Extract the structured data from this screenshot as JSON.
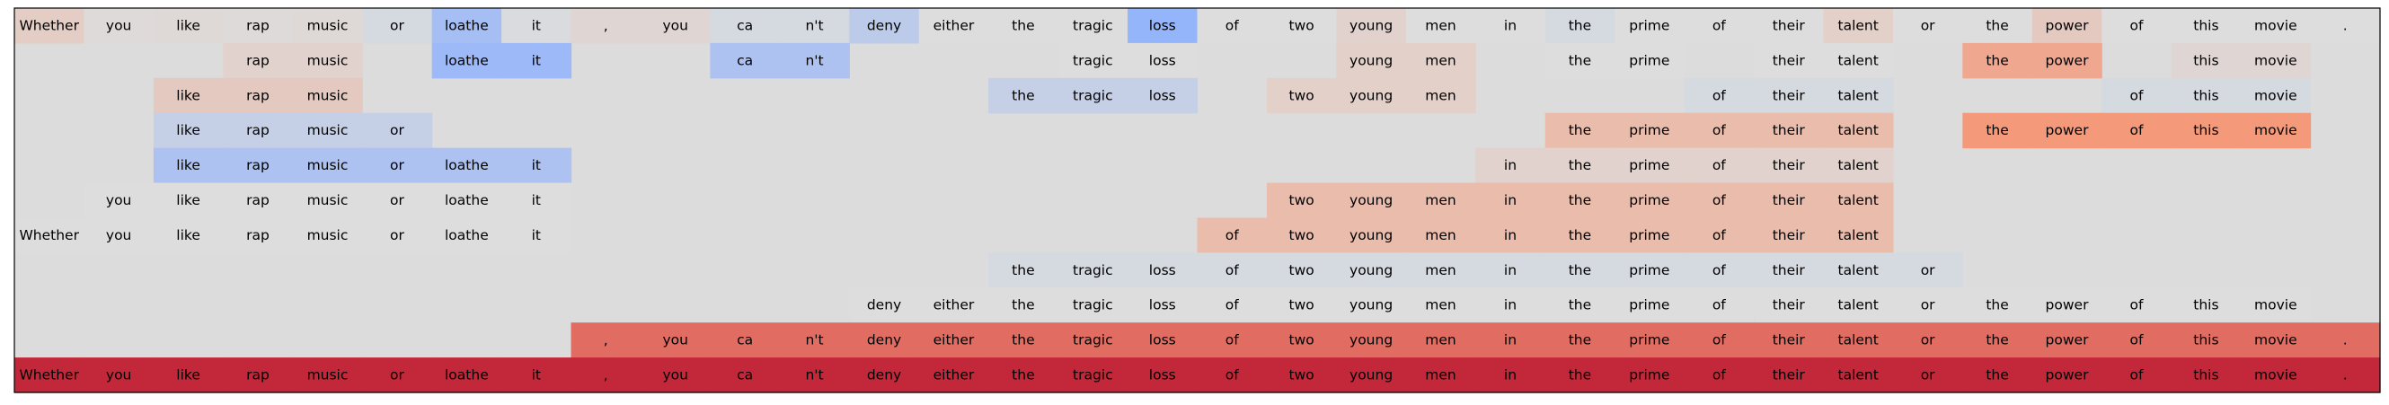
{
  "chart_data": {
    "type": "heatmap",
    "title": "",
    "xlabel": "",
    "ylabel": "",
    "colormap": "coolwarm",
    "value_range": [
      -1,
      1
    ],
    "background_color": "#dcdcdc",
    "grid": false,
    "tokens": [
      "Whether",
      "you",
      "like",
      "rap",
      "music",
      "or",
      "loathe",
      "it",
      ",",
      "you",
      "ca",
      "n't",
      "deny",
      "either",
      "the",
      "tragic",
      "loss",
      "of",
      "two",
      "young",
      "men",
      "in",
      "the",
      "prime",
      "of",
      "their",
      "talent",
      "or",
      "the",
      "power",
      "of",
      "this",
      "movie",
      "."
    ],
    "rows": [
      {
        "visible": [
          1,
          1,
          1,
          1,
          1,
          1,
          1,
          1,
          1,
          1,
          1,
          1,
          1,
          1,
          1,
          1,
          1,
          1,
          1,
          1,
          1,
          1,
          1,
          1,
          1,
          1,
          1,
          1,
          1,
          1,
          1,
          1,
          1,
          1
        ],
        "values": [
          0.12,
          0.02,
          0.03,
          0.02,
          0.03,
          -0.05,
          -0.35,
          -0.02,
          0.05,
          0.05,
          -0.05,
          -0.05,
          -0.2,
          0.0,
          0.0,
          0.0,
          -0.45,
          0.0,
          0.0,
          0.08,
          0.0,
          0.0,
          -0.05,
          0.0,
          0.0,
          0.0,
          0.1,
          0.0,
          0.0,
          0.15,
          0.0,
          0.0,
          0.0,
          0.0
        ]
      },
      {
        "visible": [
          0,
          0,
          0,
          1,
          1,
          0,
          1,
          1,
          0,
          0,
          1,
          1,
          0,
          0,
          0,
          1,
          1,
          0,
          0,
          1,
          1,
          0,
          1,
          1,
          0,
          1,
          1,
          0,
          1,
          1,
          0,
          1,
          1,
          0
        ],
        "values": [
          0,
          0,
          0,
          0.08,
          0.08,
          0,
          -0.4,
          -0.4,
          0,
          0,
          -0.3,
          -0.3,
          0,
          0,
          0,
          0.0,
          0.0,
          0,
          0,
          0.1,
          0.1,
          0,
          0.0,
          0.0,
          0,
          0.0,
          0.0,
          0,
          0.4,
          0.4,
          0,
          0.05,
          0.05,
          0
        ]
      },
      {
        "visible": [
          0,
          0,
          1,
          1,
          1,
          0,
          0,
          0,
          0,
          0,
          0,
          0,
          0,
          0,
          1,
          1,
          1,
          0,
          1,
          1,
          1,
          0,
          0,
          0,
          1,
          1,
          1,
          0,
          0,
          0,
          1,
          1,
          1,
          0
        ],
        "values": [
          0,
          0,
          0.15,
          0.15,
          0.15,
          0,
          0,
          0,
          0,
          0,
          0,
          0,
          0,
          0,
          -0.15,
          -0.15,
          -0.15,
          0,
          0.1,
          0.1,
          0.1,
          0,
          0,
          0,
          -0.05,
          -0.05,
          -0.05,
          0,
          0,
          0,
          -0.05,
          -0.05,
          -0.05,
          0
        ]
      },
      {
        "visible": [
          0,
          0,
          1,
          1,
          1,
          1,
          0,
          0,
          0,
          0,
          0,
          0,
          0,
          0,
          0,
          0,
          0,
          0,
          0,
          0,
          0,
          0,
          1,
          1,
          1,
          1,
          1,
          0,
          1,
          1,
          1,
          1,
          1,
          0
        ],
        "values": [
          0,
          0,
          -0.15,
          -0.15,
          -0.15,
          -0.15,
          0,
          0,
          0,
          0,
          0,
          0,
          0,
          0,
          0,
          0,
          0,
          0,
          0,
          0,
          0,
          0,
          0.25,
          0.25,
          0.25,
          0.25,
          0.25,
          0,
          0.5,
          0.5,
          0.5,
          0.5,
          0.5,
          0
        ]
      },
      {
        "visible": [
          0,
          0,
          1,
          1,
          1,
          1,
          1,
          1,
          0,
          0,
          0,
          0,
          0,
          0,
          0,
          0,
          0,
          0,
          0,
          0,
          0,
          1,
          1,
          1,
          1,
          1,
          1,
          0,
          0,
          0,
          0,
          0,
          0,
          0
        ],
        "values": [
          0,
          0,
          -0.3,
          -0.3,
          -0.3,
          -0.3,
          -0.3,
          -0.3,
          0,
          0,
          0,
          0,
          0,
          0,
          0,
          0,
          0,
          0,
          0,
          0,
          0,
          0.08,
          0.08,
          0.08,
          0.08,
          0.08,
          0.08,
          0,
          0,
          0,
          0,
          0,
          0,
          0
        ]
      },
      {
        "visible": [
          0,
          1,
          1,
          1,
          1,
          1,
          1,
          1,
          0,
          0,
          0,
          0,
          0,
          0,
          0,
          0,
          0,
          0,
          1,
          1,
          1,
          1,
          1,
          1,
          1,
          1,
          1,
          0,
          0,
          0,
          0,
          0,
          0,
          0
        ],
        "values": [
          0,
          0.0,
          0.0,
          0.0,
          0.0,
          0.0,
          0.0,
          0.0,
          0,
          0,
          0,
          0,
          0,
          0,
          0,
          0,
          0,
          0,
          0.25,
          0.25,
          0.25,
          0.25,
          0.25,
          0.25,
          0.25,
          0.25,
          0.25,
          0,
          0,
          0,
          0,
          0,
          0,
          0
        ]
      },
      {
        "visible": [
          1,
          1,
          1,
          1,
          1,
          1,
          1,
          1,
          0,
          0,
          0,
          0,
          0,
          0,
          0,
          0,
          0,
          1,
          1,
          1,
          1,
          1,
          1,
          1,
          1,
          1,
          1,
          0,
          0,
          0,
          0,
          0,
          0,
          0
        ],
        "values": [
          0.0,
          0.0,
          0.0,
          0.0,
          0.0,
          0.0,
          0.0,
          0.0,
          0,
          0,
          0,
          0,
          0,
          0,
          0,
          0,
          0,
          0.25,
          0.25,
          0.25,
          0.25,
          0.25,
          0.25,
          0.25,
          0.25,
          0.25,
          0.25,
          0,
          0,
          0,
          0,
          0,
          0,
          0
        ]
      },
      {
        "visible": [
          0,
          0,
          0,
          0,
          0,
          0,
          0,
          0,
          0,
          0,
          0,
          0,
          0,
          0,
          1,
          1,
          1,
          1,
          1,
          1,
          1,
          1,
          1,
          1,
          1,
          1,
          1,
          1,
          0,
          0,
          0,
          0,
          0,
          0
        ],
        "values": [
          0,
          0,
          0,
          0,
          0,
          0,
          0,
          0,
          0,
          0,
          0,
          0,
          0,
          0,
          -0.05,
          -0.05,
          -0.05,
          -0.05,
          -0.05,
          -0.05,
          -0.05,
          -0.05,
          -0.05,
          -0.05,
          -0.05,
          -0.05,
          -0.05,
          -0.05,
          0,
          0,
          0,
          0,
          0,
          0
        ]
      },
      {
        "visible": [
          0,
          0,
          0,
          0,
          0,
          0,
          0,
          0,
          0,
          0,
          0,
          0,
          1,
          1,
          1,
          1,
          1,
          1,
          1,
          1,
          1,
          1,
          1,
          1,
          1,
          1,
          1,
          1,
          1,
          1,
          1,
          1,
          1,
          0
        ],
        "values": [
          0,
          0,
          0,
          0,
          0,
          0,
          0,
          0,
          0,
          0,
          0,
          0,
          0.0,
          0.0,
          0.0,
          0.0,
          0.0,
          0.0,
          0.0,
          0.0,
          0.0,
          0.0,
          0.0,
          0.0,
          0.0,
          0.0,
          0.0,
          0.0,
          0.0,
          0.0,
          0.0,
          0.0,
          0.0,
          0
        ]
      },
      {
        "visible": [
          0,
          0,
          0,
          0,
          0,
          0,
          0,
          0,
          1,
          1,
          1,
          1,
          1,
          1,
          1,
          1,
          1,
          1,
          1,
          1,
          1,
          1,
          1,
          1,
          1,
          1,
          1,
          1,
          1,
          1,
          1,
          1,
          1,
          1
        ],
        "values": [
          0,
          0,
          0,
          0,
          0,
          0,
          0,
          0,
          0.65,
          0.65,
          0.65,
          0.65,
          0.65,
          0.65,
          0.65,
          0.65,
          0.65,
          0.65,
          0.65,
          0.65,
          0.65,
          0.65,
          0.65,
          0.65,
          0.65,
          0.65,
          0.65,
          0.65,
          0.65,
          0.65,
          0.65,
          0.65,
          0.65,
          0.65
        ]
      },
      {
        "visible": [
          1,
          1,
          1,
          1,
          1,
          1,
          1,
          1,
          1,
          1,
          1,
          1,
          1,
          1,
          1,
          1,
          1,
          1,
          1,
          1,
          1,
          1,
          1,
          1,
          1,
          1,
          1,
          1,
          1,
          1,
          1,
          1,
          1,
          1
        ],
        "values": [
          0.88,
          0.88,
          0.88,
          0.88,
          0.88,
          0.88,
          0.88,
          0.88,
          0.88,
          0.88,
          0.88,
          0.88,
          0.88,
          0.88,
          0.88,
          0.88,
          0.88,
          0.88,
          0.88,
          0.88,
          0.88,
          0.88,
          0.88,
          0.88,
          0.88,
          0.88,
          0.88,
          0.88,
          0.88,
          0.88,
          0.88,
          0.88,
          0.88,
          0.88
        ]
      }
    ]
  }
}
